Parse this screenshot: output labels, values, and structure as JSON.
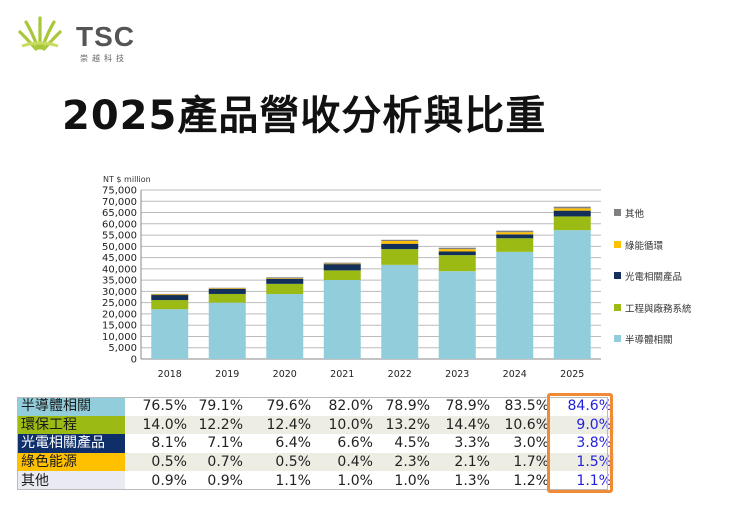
{
  "logo": {
    "text": "TSC",
    "subtitle": "崇越科技"
  },
  "title": "2025產品營收分析與比重",
  "chart_data": {
    "type": "bar",
    "stacked": true,
    "ylabel": "NT $ million",
    "ylim": [
      0,
      75000
    ],
    "yticks": [
      "0",
      "5,000",
      "10,000",
      "15,000",
      "20,000",
      "25,000",
      "30,000",
      "35,000",
      "40,000",
      "45,000",
      "50,000",
      "55,000",
      "60,000",
      "65,000",
      "70,000",
      "75,000"
    ],
    "grid": true,
    "legend_position": "right",
    "categories": [
      "2018",
      "2019",
      "2020",
      "2021",
      "2022",
      "2023",
      "2024",
      "2025"
    ],
    "series": [
      {
        "name": "半導體相關",
        "color": "#92cddc",
        "values": [
          22100,
          25000,
          28850,
          35050,
          41780,
          38980,
          47550,
          57190
        ]
      },
      {
        "name": "工程與廠務系統",
        "color": "#9bbb14",
        "values": [
          4050,
          3860,
          4500,
          4280,
          6990,
          7110,
          6040,
          6080
        ]
      },
      {
        "name": "光電相關產品",
        "color": "#12305a",
        "values": [
          2340,
          2250,
          2320,
          2820,
          2380,
          1630,
          1710,
          2570
        ]
      },
      {
        "name": "綠能循環",
        "color": "#ffc000",
        "values": [
          145,
          220,
          180,
          170,
          1220,
          1040,
          970,
          1010
        ]
      },
      {
        "name": "其他",
        "color": "#808080",
        "values": [
          260,
          285,
          400,
          430,
          530,
          640,
          680,
          740
        ]
      }
    ]
  },
  "legend": [
    {
      "label": "其他",
      "color": "#808080"
    },
    {
      "label": "綠能循環",
      "color": "#ffc000"
    },
    {
      "label": "光電相關產品",
      "color": "#12305a"
    },
    {
      "label": "工程與廠務系統",
      "color": "#9bbb14"
    },
    {
      "label": "半導體相關",
      "color": "#92cddc"
    }
  ],
  "table": {
    "highlight_color": "#f08a35",
    "rows": [
      {
        "label": "半導體相關",
        "bg": "#92cddc",
        "fg": "#1a1a1a",
        "values": [
          "76.5%",
          "79.1%",
          "79.6%",
          "82.0%",
          "78.9%",
          "78.9%",
          "83.5%",
          "84.6%"
        ]
      },
      {
        "label": "環保工程",
        "bg": "#9bbb14",
        "fg": "#1a1a1a",
        "values": [
          "14.0%",
          "12.2%",
          "12.4%",
          "10.0%",
          "13.2%",
          "14.4%",
          "10.6%",
          "9.0%"
        ]
      },
      {
        "label": "光電相關產品",
        "bg": "#0f2f6b",
        "fg": "#ffffff",
        "values": [
          "8.1%",
          "7.1%",
          "6.4%",
          "6.6%",
          "4.5%",
          "3.3%",
          "3.0%",
          "3.8%"
        ]
      },
      {
        "label": "綠色能源",
        "bg": "#ffc000",
        "fg": "#1a1a1a",
        "values": [
          "0.5%",
          "0.7%",
          "0.5%",
          "0.4%",
          "2.3%",
          "2.1%",
          "1.7%",
          "1.5%"
        ]
      },
      {
        "label": "其他",
        "bg": "#eaeaf2",
        "fg": "#1a1a1a",
        "values": [
          "0.9%",
          "0.9%",
          "1.1%",
          "1.0%",
          "1.0%",
          "1.3%",
          "1.2%",
          "1.1%"
        ]
      }
    ]
  }
}
